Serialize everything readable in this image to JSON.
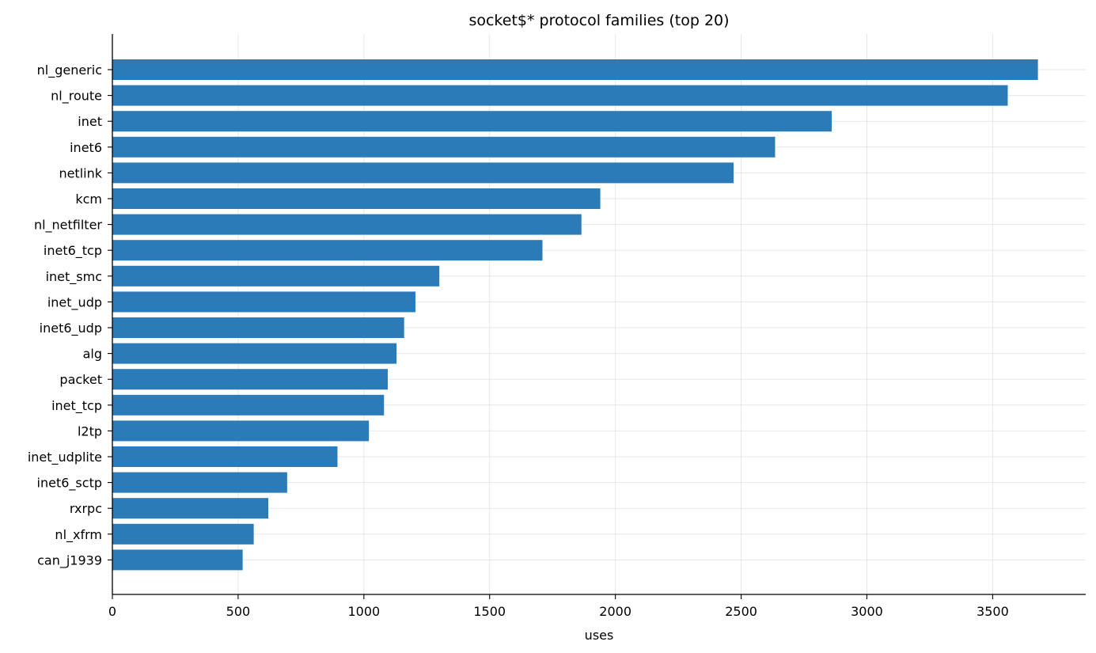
{
  "chart_data": {
    "type": "bar",
    "orientation": "horizontal",
    "title": "socket$* protocol families (top 20)",
    "xlabel": "uses",
    "ylabel": "",
    "xlim": [
      0,
      3870
    ],
    "xticks": [
      0,
      500,
      1000,
      1500,
      2000,
      2500,
      3000,
      3500
    ],
    "grid": true,
    "bar_color": "#2b7bb9",
    "categories": [
      "nl_generic",
      "nl_route",
      "inet",
      "inet6",
      "netlink",
      "kcm",
      "nl_netfilter",
      "inet6_tcp",
      "inet_smc",
      "inet_udp",
      "inet6_udp",
      "alg",
      "packet",
      "inet_tcp",
      "l2tp",
      "inet_udplite",
      "inet6_sctp",
      "rxrpc",
      "nl_xfrm",
      "can_j1939"
    ],
    "values": [
      3680,
      3560,
      2860,
      2635,
      2470,
      1940,
      1865,
      1710,
      1300,
      1205,
      1160,
      1130,
      1095,
      1080,
      1020,
      895,
      695,
      620,
      562,
      518
    ]
  }
}
